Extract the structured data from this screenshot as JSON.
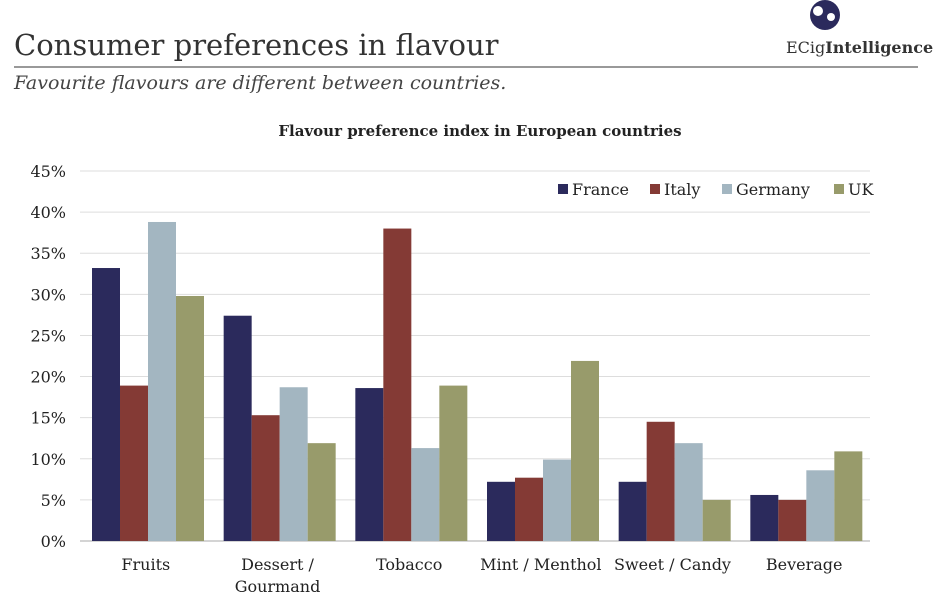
{
  "header": {
    "title": "Consumer preferences in flavour",
    "subtitle": "Favourite flavours are different between countries.",
    "logo_text_a": "ECig",
    "logo_text_b": "Intelligence"
  },
  "chart_data": {
    "type": "bar",
    "title": "Flavour preference index in European countries",
    "categories": [
      "Fruits",
      "Dessert / Gourmand",
      "Tobacco",
      "Mint / Menthol",
      "Sweet / Candy",
      "Beverage"
    ],
    "series": [
      {
        "name": "France",
        "color": "#2b2a5c",
        "values": [
          33.2,
          27.4,
          18.6,
          7.2,
          7.2,
          5.6
        ]
      },
      {
        "name": "Italy",
        "color": "#843a35",
        "values": [
          18.9,
          15.3,
          38.0,
          7.7,
          14.5,
          5.0
        ]
      },
      {
        "name": "Germany",
        "color": "#a3b6c1",
        "values": [
          38.8,
          18.7,
          11.3,
          9.9,
          11.9,
          8.6
        ]
      },
      {
        "name": "UK",
        "color": "#989b6b",
        "values": [
          29.8,
          11.9,
          18.9,
          21.9,
          5.0,
          10.9
        ]
      }
    ],
    "ylim": [
      0,
      45
    ],
    "yticks": [
      "0%",
      "5%",
      "10%",
      "15%",
      "20%",
      "25%",
      "30%",
      "35%",
      "40%",
      "45%"
    ],
    "grid": true,
    "legend": "top-right"
  }
}
